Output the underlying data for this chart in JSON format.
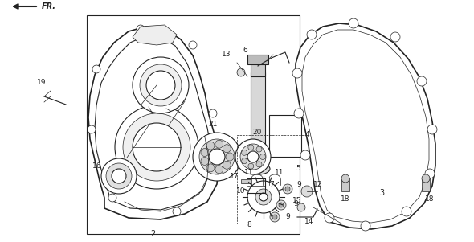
{
  "bg_color": "#ffffff",
  "line_color": "#222222",
  "figsize": [
    5.9,
    3.01
  ],
  "dpi": 100,
  "gray_light": "#e8e8e8",
  "gray_mid": "#cccccc",
  "gray_dark": "#999999"
}
